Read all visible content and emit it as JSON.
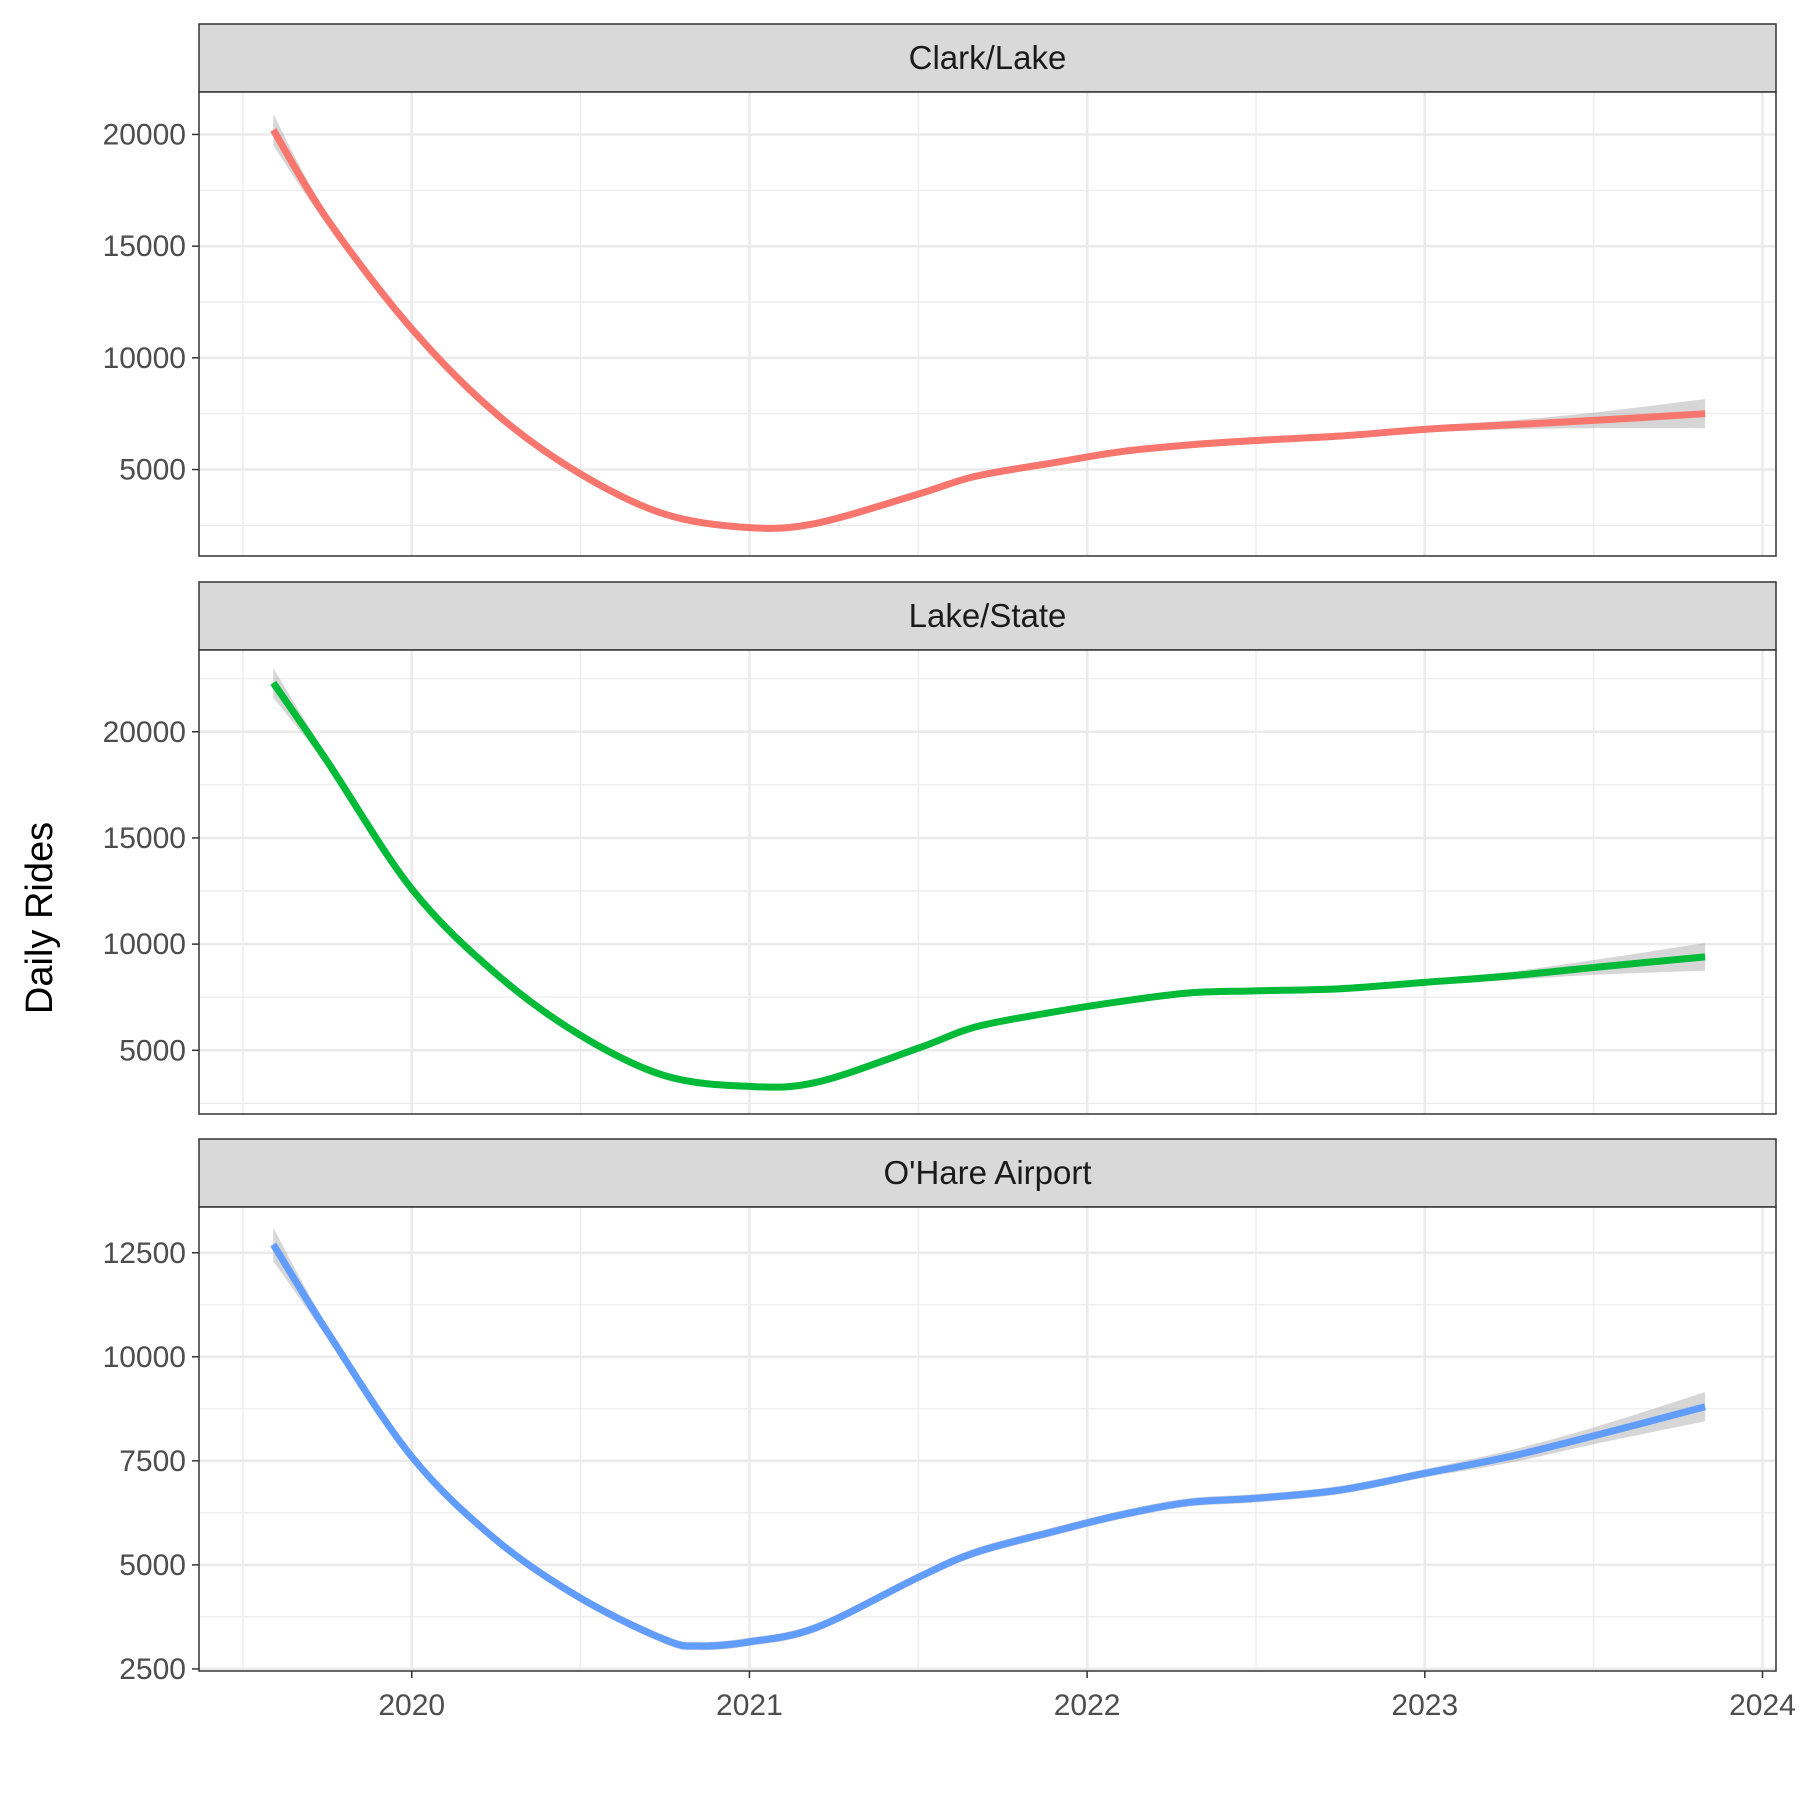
{
  "chart_data": {
    "type": "line",
    "ylabel": "Daily Rides",
    "xlabel": "",
    "x_ticks": [
      2020,
      2021,
      2022,
      2023,
      2024
    ],
    "xlim": [
      2019.37,
      2024.04
    ],
    "grid": true,
    "confidence_band": true,
    "theme": "facet panels stacked vertically, grey strip headers",
    "panels": [
      {
        "name": "Clark/Lake",
        "color": "#F8766D",
        "ylim": [
          1130,
          21900
        ],
        "y_ticks": [
          5000,
          10000,
          15000,
          20000
        ],
        "x": [
          2019.59,
          2019.75,
          2020.0,
          2020.25,
          2020.5,
          2020.75,
          2021.0,
          2021.2,
          2021.5,
          2021.67,
          2021.9,
          2022.1,
          2022.3,
          2022.5,
          2022.75,
          2023.0,
          2023.25,
          2023.5,
          2023.83
        ],
        "y": [
          20200,
          16200,
          11300,
          7500,
          4800,
          3000,
          2400,
          2600,
          3900,
          4700,
          5300,
          5800,
          6100,
          6300,
          6500,
          6800,
          7000,
          7200,
          7500
        ],
        "band_halfwidth": [
          700,
          250,
          150,
          150,
          150,
          150,
          150,
          150,
          150,
          150,
          150,
          150,
          150,
          150,
          150,
          150,
          200,
          350,
          650
        ]
      },
      {
        "name": "Lake/State",
        "color": "#00BA38",
        "ylim": [
          2000,
          23850
        ],
        "y_ticks": [
          5000,
          10000,
          15000,
          20000
        ],
        "x": [
          2019.59,
          2019.75,
          2020.0,
          2020.25,
          2020.5,
          2020.75,
          2021.0,
          2021.2,
          2021.5,
          2021.67,
          2021.9,
          2022.1,
          2022.3,
          2022.5,
          2022.75,
          2023.0,
          2023.25,
          2023.5,
          2023.83
        ],
        "y": [
          22300,
          18600,
          12600,
          8600,
          5700,
          3800,
          3300,
          3500,
          5100,
          6100,
          6800,
          7300,
          7700,
          7800,
          7900,
          8200,
          8500,
          8900,
          9400
        ],
        "band_halfwidth": [
          700,
          250,
          150,
          150,
          150,
          150,
          150,
          150,
          150,
          150,
          150,
          150,
          150,
          150,
          150,
          150,
          200,
          350,
          650
        ]
      },
      {
        "name": "O'Hare Airport",
        "color": "#619CFF",
        "ylim": [
          2450,
          13600
        ],
        "y_ticks": [
          2500,
          5000,
          7500,
          10000,
          12500
        ],
        "x": [
          2019.59,
          2019.75,
          2020.0,
          2020.25,
          2020.5,
          2020.75,
          2020.85,
          2021.0,
          2021.2,
          2021.5,
          2021.67,
          2021.9,
          2022.1,
          2022.3,
          2022.5,
          2022.75,
          2023.0,
          2023.25,
          2023.5,
          2023.83
        ],
        "y": [
          12700,
          10600,
          7600,
          5600,
          4200,
          3200,
          3050,
          3150,
          3500,
          4700,
          5300,
          5800,
          6200,
          6500,
          6600,
          6800,
          7200,
          7600,
          8100,
          8800
        ],
        "band_halfwidth": [
          400,
          150,
          100,
          100,
          100,
          100,
          100,
          100,
          100,
          100,
          100,
          100,
          100,
          100,
          100,
          100,
          100,
          150,
          200,
          350
        ]
      }
    ]
  }
}
